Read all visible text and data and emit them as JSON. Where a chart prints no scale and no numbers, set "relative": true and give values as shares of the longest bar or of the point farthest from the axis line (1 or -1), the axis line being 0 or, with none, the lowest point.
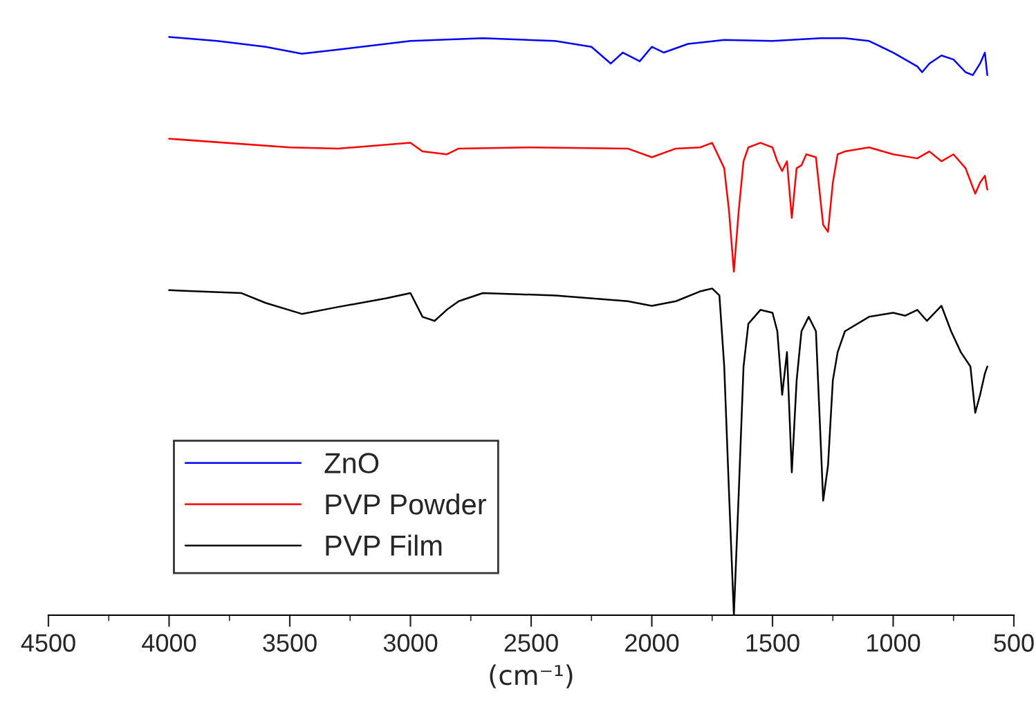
{
  "chart_data": {
    "type": "line",
    "relative": true,
    "xlabel": "(cm⁻¹)",
    "xlim": [
      4500,
      500
    ],
    "xticks": [
      4500,
      4000,
      3500,
      3000,
      2500,
      2000,
      1500,
      1000,
      500
    ],
    "legend": "bottom left",
    "grid": false,
    "tick_labels": "x",
    "series": [
      {
        "name": "ZnO",
        "color": "#0000ff",
        "x": [
          4000,
          3800,
          3600,
          3450,
          3300,
          3000,
          2700,
          2400,
          2250,
          2170,
          2120,
          2050,
          2000,
          1950,
          1850,
          1700,
          1500,
          1300,
          1200,
          1100,
          1000,
          900,
          880,
          850,
          800,
          750,
          700,
          670,
          640,
          620,
          610
        ],
        "values": [
          1,
          0.993,
          0.983,
          0.971,
          0.978,
          0.993,
          0.998,
          0.993,
          0.983,
          0.954,
          0.973,
          0.958,
          0.983,
          0.973,
          0.988,
          0.995,
          0.993,
          0.998,
          0.998,
          0.993,
          0.973,
          0.949,
          0.939,
          0.954,
          0.968,
          0.961,
          0.939,
          0.934,
          0.954,
          0.973,
          0.934
        ]
      },
      {
        "name": "PVP Powder",
        "color": "#ff0000",
        "x": [
          4000,
          3500,
          3300,
          3000,
          2950,
          2850,
          2800,
          2500,
          2100,
          2000,
          1900,
          1800,
          1750,
          1700,
          1680,
          1660,
          1640,
          1620,
          1600,
          1550,
          1500,
          1480,
          1460,
          1440,
          1420,
          1400,
          1380,
          1360,
          1320,
          1290,
          1270,
          1250,
          1230,
          1200,
          1100,
          1000,
          900,
          850,
          800,
          750,
          700,
          660,
          640,
          620,
          610
        ],
        "values": [
          0.824,
          0.809,
          0.807,
          0.817,
          0.802,
          0.797,
          0.807,
          0.809,
          0.807,
          0.792,
          0.807,
          0.809,
          0.817,
          0.773,
          0.699,
          0.594,
          0.699,
          0.785,
          0.809,
          0.817,
          0.809,
          0.785,
          0.768,
          0.785,
          0.687,
          0.773,
          0.778,
          0.797,
          0.792,
          0.675,
          0.663,
          0.748,
          0.797,
          0.802,
          0.809,
          0.797,
          0.79,
          0.802,
          0.785,
          0.797,
          0.773,
          0.729,
          0.748,
          0.76,
          0.736
        ]
      },
      {
        "name": "PVP Film",
        "color": "#000000",
        "x": [
          4000,
          3700,
          3600,
          3450,
          3300,
          3100,
          3000,
          2950,
          2900,
          2850,
          2800,
          2700,
          2400,
          2100,
          2000,
          1900,
          1800,
          1750,
          1720,
          1700,
          1680,
          1660,
          1640,
          1620,
          1600,
          1550,
          1500,
          1480,
          1460,
          1440,
          1420,
          1400,
          1380,
          1350,
          1320,
          1290,
          1270,
          1250,
          1230,
          1200,
          1100,
          1000,
          950,
          900,
          860,
          800,
          760,
          720,
          680,
          660,
          640,
          620,
          610
        ],
        "values": [
          0.562,
          0.557,
          0.54,
          0.521,
          0.533,
          0.548,
          0.557,
          0.516,
          0.509,
          0.528,
          0.543,
          0.557,
          0.553,
          0.543,
          0.535,
          0.543,
          0.56,
          0.565,
          0.553,
          0.43,
          0.21,
          0,
          0.21,
          0.43,
          0.504,
          0.528,
          0.523,
          0.491,
          0.381,
          0.455,
          0.247,
          0.406,
          0.491,
          0.516,
          0.491,
          0.198,
          0.259,
          0.406,
          0.455,
          0.491,
          0.516,
          0.523,
          0.518,
          0.528,
          0.509,
          0.535,
          0.491,
          0.455,
          0.43,
          0.35,
          0.381,
          0.418,
          0.43
        ]
      }
    ]
  }
}
